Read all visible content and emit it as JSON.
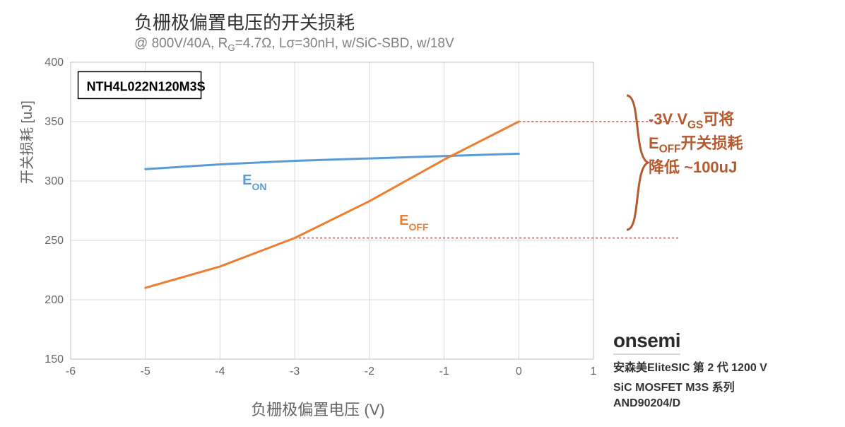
{
  "title": "负栅极偏置电压的开关损耗",
  "subtitle_html": "@ 800V/40A, R<sub>G</sub>=4.7Ω, Lσ=30nH, w/SiC-SBD, w/18V",
  "y_axis_label": "开关损耗 [uJ]",
  "x_axis_label": "负栅极偏置电压 (V)",
  "chart": {
    "type": "line",
    "xlim": [
      -6,
      1
    ],
    "ylim": [
      150,
      400
    ],
    "xtick_step": 1,
    "ytick_step": 50,
    "background_color": "#ffffff",
    "grid_color": "#d9d9d9",
    "axis_color": "#bfbfbf",
    "tick_label_color": "#666666",
    "tick_fontsize": 16,
    "line_width": 3,
    "series": [
      {
        "name": "E_ON",
        "label_html": "E<sub>ON</sub>",
        "color": "#5b9bd5",
        "label_pos": {
          "x": -3.7,
          "y": 297
        },
        "points": [
          {
            "x": -5,
            "y": 310
          },
          {
            "x": -4,
            "y": 314
          },
          {
            "x": -3,
            "y": 317
          },
          {
            "x": -2,
            "y": 319
          },
          {
            "x": -1,
            "y": 321
          },
          {
            "x": 0,
            "y": 323
          }
        ]
      },
      {
        "name": "E_OFF",
        "label_html": "E<sub>OFF</sub>",
        "color": "#ed7d31",
        "label_pos": {
          "x": -1.6,
          "y": 263
        },
        "points": [
          {
            "x": -5,
            "y": 210
          },
          {
            "x": -4,
            "y": 228
          },
          {
            "x": -3,
            "y": 252
          },
          {
            "x": -2,
            "y": 283
          },
          {
            "x": -1,
            "y": 318
          },
          {
            "x": 0,
            "y": 350
          }
        ]
      }
    ],
    "part_label": {
      "text": "NTH4L022N120M3S",
      "box_stroke": "#000000",
      "box_fill": "#ffffff",
      "fontsize": 18
    },
    "annotations": {
      "upper_level_y": 350,
      "lower_level_y": 252,
      "upper_from_x": 0,
      "lower_from_x": -3,
      "line_color": "#c0504d",
      "dash": "3,3"
    }
  },
  "callout": {
    "color": "#b45a2e",
    "line1_html": "-3V V<sub>GS</sub>可将",
    "line2_html": "E<sub>OFF</sub>开关损耗",
    "line3": "降低 ~100uJ",
    "brace_color": "#b45a2e"
  },
  "footer": {
    "brand": "onsemi",
    "line1": "安森美EliteSIC 第 2 代 1200 V",
    "line2": "SiC MOSFET M3S 系列",
    "line3": "AND90204/D"
  }
}
